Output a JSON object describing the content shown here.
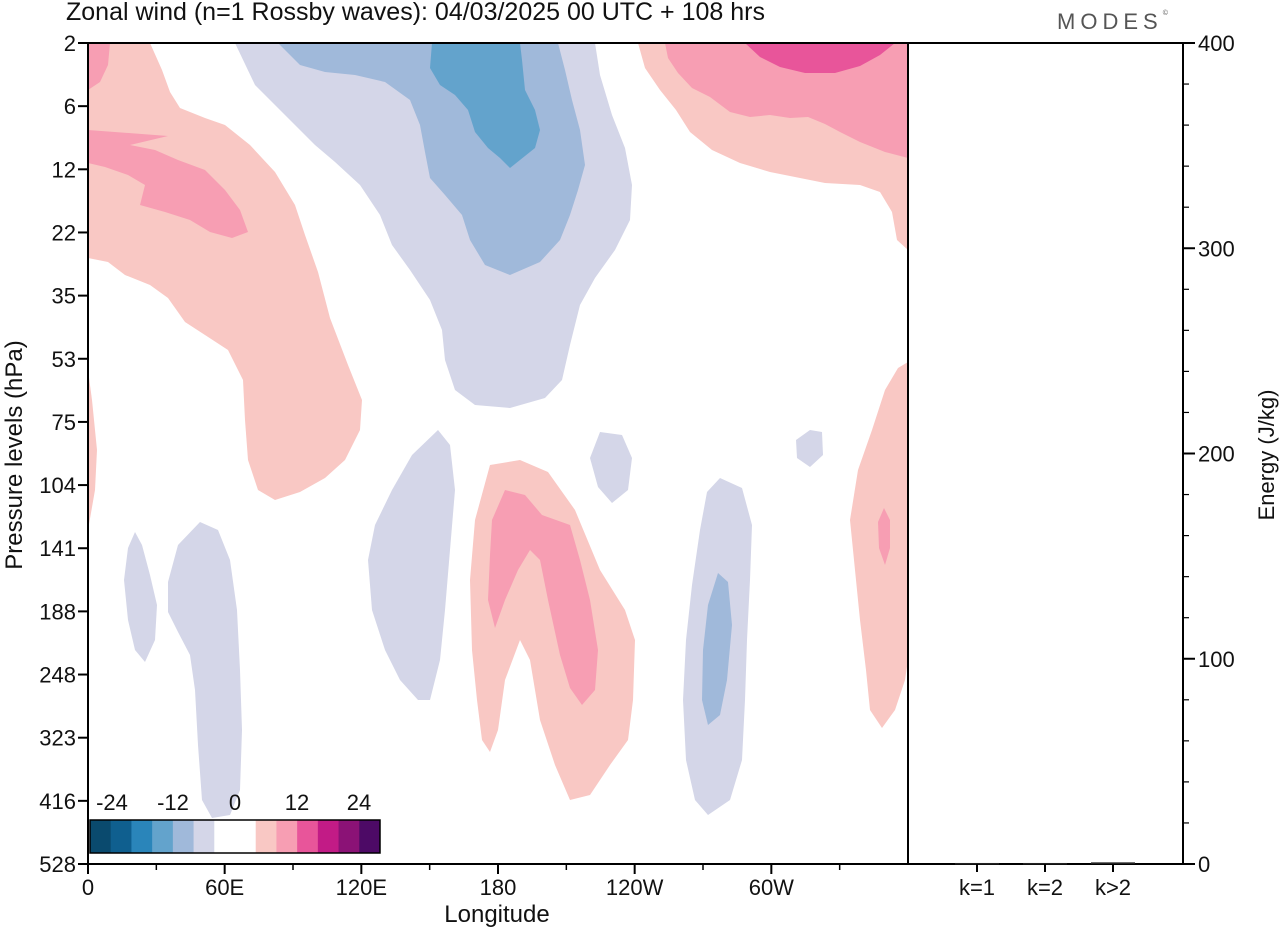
{
  "header": {
    "title": "Zonal wind (n=1 Rossby waves):  04/03/2025  00 UTC  + 108 hrs",
    "brand": "MODES",
    "brand_mark": "©"
  },
  "chart_data": [
    {
      "type": "heatmap",
      "title": "Zonal wind (n=1 Rossby waves):  04/03/2025  00 UTC  + 108 hrs",
      "xlabel": "Longitude",
      "ylabel": "Pressure levels (hPa)",
      "x_ticks": [
        "0",
        "60E",
        "120E",
        "180",
        "120W",
        "60W"
      ],
      "x_range_deg_east": [
        0,
        360
      ],
      "y_ticks": [
        "2",
        "6",
        "12",
        "22",
        "35",
        "53",
        "75",
        "104",
        "141",
        "188",
        "248",
        "323",
        "416",
        "528"
      ],
      "y_scale": "pressure levels, log-like, 2 hPa at top to 528 hPa at bottom",
      "grid": false,
      "colorbar": {
        "placement": "bottom-left inset",
        "tick_labels": [
          "-24",
          "-12",
          "0",
          "12",
          "24"
        ],
        "colors": [
          "#0a4a6e",
          "#0f5f8f",
          "#2a85ba",
          "#63a3cc",
          "#a0b9da",
          "#d4d6e8",
          "#ffffff",
          "#ffffff",
          "#f9c8c4",
          "#f79eb3",
          "#e8559a",
          "#c21b86",
          "#8b1276",
          "#4d0a66"
        ]
      },
      "features": [
        {
          "sign": "positive",
          "max_color": "#e8559a",
          "region": "2-22 hPa, 110W to 0"
        },
        {
          "sign": "positive",
          "max_color": "#f79eb3",
          "region": "2-100 hPa, 0 to 100E"
        },
        {
          "sign": "negative",
          "max_color": "#63a3cc",
          "region": "2-75 hPa, 70E to 170W"
        },
        {
          "sign": "positive",
          "max_color": "#f79eb3",
          "region": "110-420 hPa, 180 to 110W"
        },
        {
          "sign": "negative",
          "max_color": "#a0b9da",
          "region": "110-400 hPa, 100W to 80W"
        },
        {
          "sign": "positive",
          "max_color": "#f79eb3",
          "region": "55-320 hPa, 30W to 0"
        },
        {
          "sign": "negative",
          "max_color": "#d4d6e8",
          "region": "140-420 hPa, 15E to 65E"
        },
        {
          "sign": "negative",
          "max_color": "#d4d6e8",
          "region": "75-250 hPa, 125E to 160E"
        }
      ]
    },
    {
      "type": "bar",
      "categories": [
        "k=1",
        "k=2",
        "k>2"
      ],
      "values": [
        0.5,
        0.5,
        0.8
      ],
      "ylabel": "Energy (J/kg)",
      "ylim": [
        0,
        400
      ],
      "y_ticks": [
        "0",
        "100",
        "200",
        "300",
        "400"
      ],
      "grid": false
    }
  ]
}
